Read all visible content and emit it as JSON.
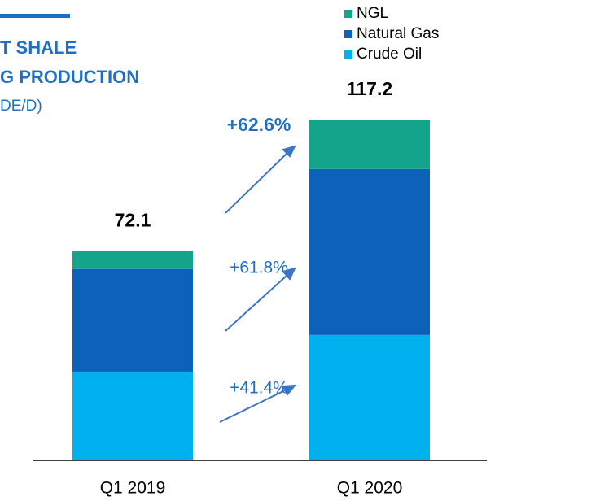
{
  "chart_data": {
    "type": "stacked_bar",
    "title_lines": [
      "T SHALE",
      "G PRODUCTION"
    ],
    "subtitle": "DE/D)",
    "categories": [
      "Q1 2019",
      "Q1 2020"
    ],
    "series": [
      {
        "name": "NGL",
        "color": "#14a38b",
        "values": [
          6.3,
          17.0
        ]
      },
      {
        "name": "Natural Gas",
        "color": "#0c62b8",
        "values": [
          35.3,
          57.1
        ]
      },
      {
        "name": "Crude Oil",
        "color": "#00b0ef",
        "values": [
          30.5,
          43.1
        ]
      }
    ],
    "totals": [
      72.1,
      117.2
    ],
    "annotations": [
      "+62.6%",
      "+61.8%",
      "+41.4%"
    ],
    "legend": "top-right"
  }
}
